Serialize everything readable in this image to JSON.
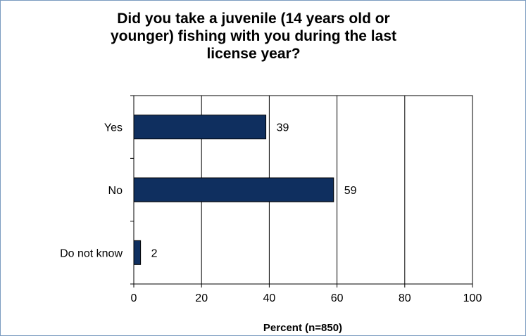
{
  "chart_data": {
    "type": "bar",
    "orientation": "horizontal",
    "title": "Did you take a juvenile (14 years old or younger) fishing with you during the last license year?",
    "categories": [
      "Yes",
      "No",
      "Do not know"
    ],
    "values": [
      39,
      59,
      2
    ],
    "data_labels": [
      "39",
      "59",
      "2"
    ],
    "xlabel": "Percent (n=850)",
    "ylabel": "",
    "xlim": [
      0,
      100
    ],
    "x_ticks": [
      0,
      20,
      40,
      60,
      80,
      100
    ],
    "x_tick_labels": [
      "0",
      "20",
      "40",
      "60",
      "80",
      "100"
    ],
    "grid": true,
    "legend": "none",
    "bar_color": "#0f2f5f",
    "bar_edge_color": "#000000",
    "frame_color": "#7a9bc0"
  }
}
